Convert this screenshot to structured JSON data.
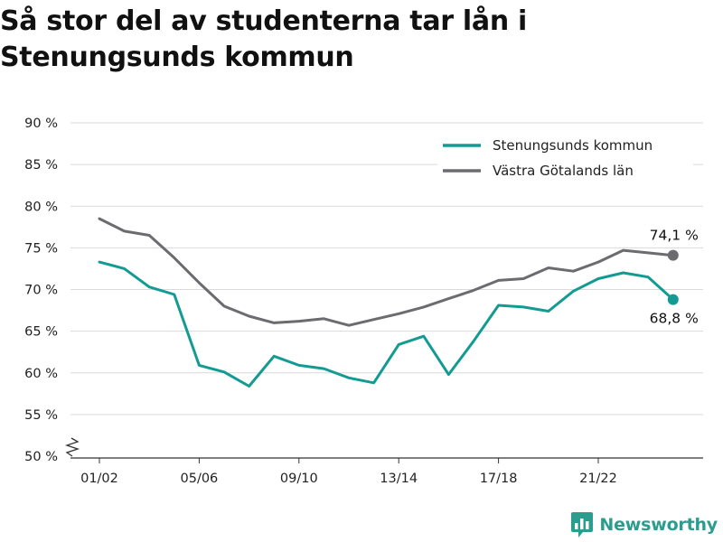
{
  "title": "Så stor del av studenterna tar lån i Stenungsunds kommun",
  "brand": {
    "name": "Newsworthy",
    "color": "#2a9d8f"
  },
  "chart_data": {
    "type": "line",
    "title": "Så stor del av studenterna tar lån i Stenungsunds kommun",
    "xlabel": "",
    "ylabel": "",
    "ylim": [
      50,
      90
    ],
    "y_axis_broken": true,
    "grid": "horizontal",
    "legend_position": "top-right",
    "y_ticks": [
      50,
      55,
      60,
      65,
      70,
      75,
      80,
      85,
      90
    ],
    "y_tick_labels": [
      "50 %",
      "55 %",
      "60 %",
      "65 %",
      "70 %",
      "75 %",
      "80 %",
      "85 %",
      "90 %"
    ],
    "x_tick_labels": [
      "01/02",
      "05/06",
      "09/10",
      "13/14",
      "17/18",
      "21/22"
    ],
    "x_tick_indices": [
      0,
      4,
      8,
      12,
      16,
      20
    ],
    "series": [
      {
        "name": "Stenungsunds kommun",
        "color": "#139b93",
        "values": [
          73.3,
          72.5,
          70.3,
          69.4,
          60.9,
          60.1,
          58.4,
          62.0,
          60.9,
          60.5,
          59.4,
          58.8,
          63.4,
          64.4,
          59.8,
          63.8,
          68.1,
          67.9,
          67.4,
          69.8,
          71.3,
          72.0,
          71.5,
          68.8
        ],
        "end_label": "68,8 %"
      },
      {
        "name": "Västra Götalands län",
        "color": "#6b6b70",
        "values": [
          78.5,
          77.0,
          76.5,
          73.8,
          70.8,
          68.0,
          66.8,
          66.0,
          66.2,
          66.5,
          65.7,
          66.4,
          67.1,
          67.9,
          68.9,
          69.9,
          71.1,
          71.3,
          72.6,
          72.2,
          73.3,
          74.7,
          74.4,
          74.1
        ],
        "end_label": "74,1 %"
      }
    ]
  }
}
